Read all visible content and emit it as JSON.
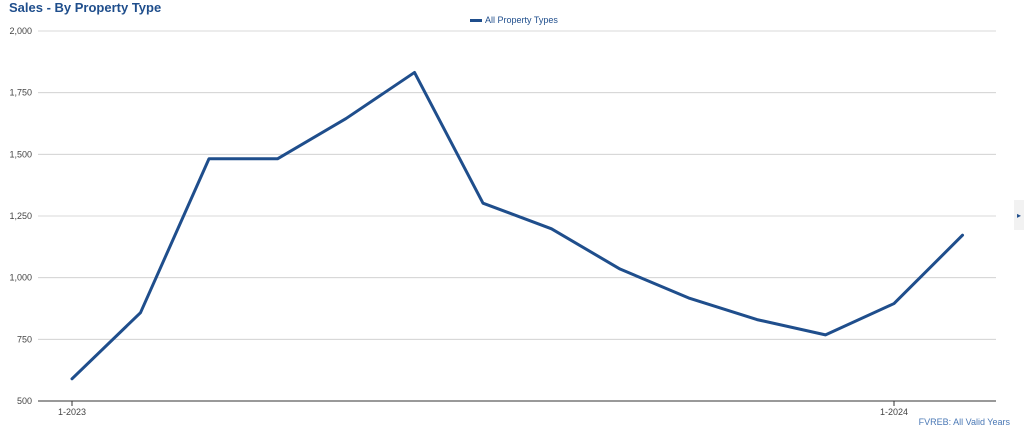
{
  "chart_data": {
    "type": "line",
    "title": "Sales - By Property Type",
    "xlabel": "",
    "ylabel": "",
    "x_tick_labels": [
      {
        "label": "1-2023",
        "index": 0
      },
      {
        "label": "1-2024",
        "index": 12
      }
    ],
    "y_ticks": [
      500,
      750,
      1000,
      1250,
      1500,
      1750,
      2000
    ],
    "y_tick_labels": [
      "500",
      "750",
      "1,000",
      "1,250",
      "1,500",
      "1,750",
      "2,000"
    ],
    "ylim": [
      500,
      2000
    ],
    "grid": true,
    "legend_position": "top-center",
    "series": [
      {
        "name": "All Property Types",
        "color": "#1f4e8c",
        "x": [
          "1-2023",
          "2-2023",
          "3-2023",
          "4-2023",
          "5-2023",
          "6-2023",
          "7-2023",
          "8-2023",
          "9-2023",
          "10-2023",
          "11-2023",
          "12-2023",
          "1-2024",
          "2-2024"
        ],
        "values": [
          590,
          858,
          1482,
          1482,
          1645,
          1832,
          1302,
          1198,
          1035,
          918,
          830,
          768,
          895,
          1172
        ]
      }
    ]
  },
  "source_note": "FVREB: All Valid Years",
  "side_arrow": "▸"
}
